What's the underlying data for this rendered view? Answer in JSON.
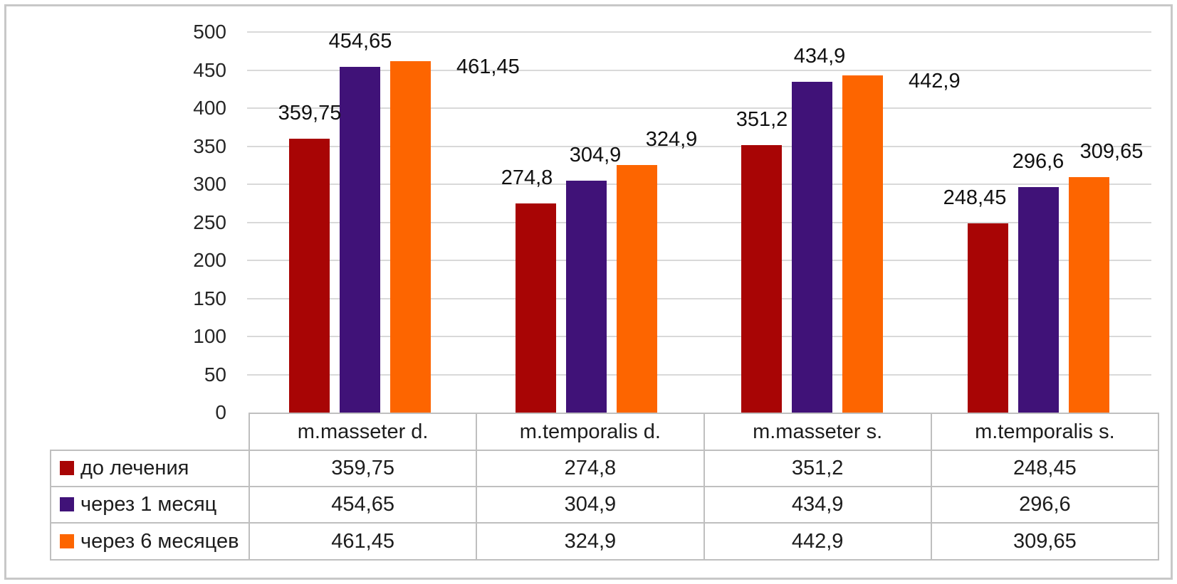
{
  "figure": {
    "background": "#FFFFFF",
    "frame_border_color": "#C8C8C8"
  },
  "chart_data": {
    "type": "bar",
    "title": "",
    "xlabel": "",
    "ylabel": "",
    "categories": [
      "m.masseter d.",
      "m.temporalis d.",
      "m.masseter s.",
      "m.temporalis s."
    ],
    "series": [
      {
        "name": "до лечения",
        "color": "#A80505",
        "values": [
          359.75,
          274.8,
          351.2,
          248.45
        ],
        "labels": [
          "359,75",
          "274,8",
          "351,2",
          "248,45"
        ]
      },
      {
        "name": "через 1 месяц",
        "color": "#401278",
        "values": [
          454.65,
          304.9,
          434.9,
          296.6
        ],
        "labels": [
          "454,65",
          "304,9",
          "434,9",
          "296,6"
        ]
      },
      {
        "name": "через 6 месяцев",
        "color": "#FD6500",
        "values": [
          461.45,
          324.9,
          442.9,
          309.65
        ],
        "labels": [
          "461,45",
          "324,9",
          "442,9",
          "309,65"
        ]
      }
    ],
    "ylim": [
      0,
      500
    ],
    "ytick_step": 50,
    "ytick_labels": [
      "0",
      "50",
      "100",
      "150",
      "200",
      "250",
      "300",
      "350",
      "400",
      "450",
      "500"
    ],
    "grid": true,
    "gridline_color": "#D9D9D9",
    "axis_text_color": "#262626",
    "legend_position": "table-left-column",
    "data_table_shown": true,
    "table_border_color": "#BFBFBF",
    "label_layout": [
      [
        {
          "dx": 0
        },
        {
          "dx": -12
        },
        {
          "dx": 0
        },
        {
          "dx": -18
        }
      ],
      [
        {
          "dx": 0
        },
        {
          "dx": 13
        },
        {
          "dx": 10
        },
        {
          "dx": 0
        }
      ],
      [
        {
          "side": "right"
        },
        {
          "dx": 49
        },
        {
          "side": "right"
        },
        {
          "dx": 32
        }
      ]
    ]
  }
}
